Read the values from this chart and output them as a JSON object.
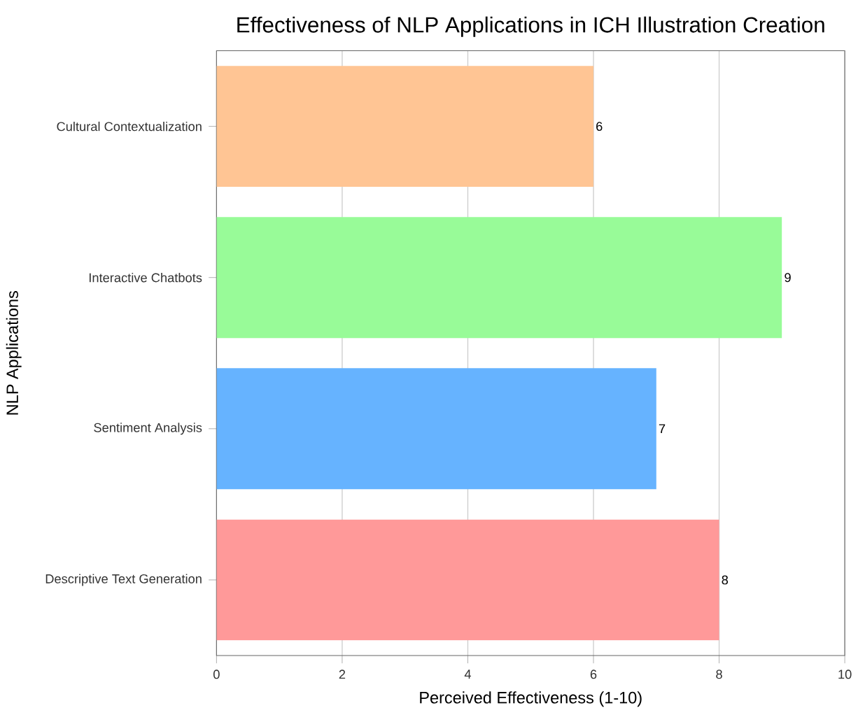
{
  "chart_data": {
    "type": "bar",
    "orientation": "horizontal",
    "title": "Effectiveness of NLP Applications in ICH Illustration Creation",
    "xlabel": "Perceived Effectiveness (1-10)",
    "ylabel": "NLP Applications",
    "categories": [
      "Cultural Contextualization",
      "Interactive Chatbots",
      "Sentiment Analysis",
      "Descriptive Text Generation"
    ],
    "values": [
      6,
      9,
      7,
      8
    ],
    "colors": [
      "#ffc594",
      "#98fb98",
      "#66b3ff",
      "#ff9999"
    ],
    "xlim": [
      0,
      10
    ],
    "xticks": [
      0,
      2,
      4,
      6,
      8,
      10
    ],
    "grid": "x",
    "data_labels": true
  }
}
